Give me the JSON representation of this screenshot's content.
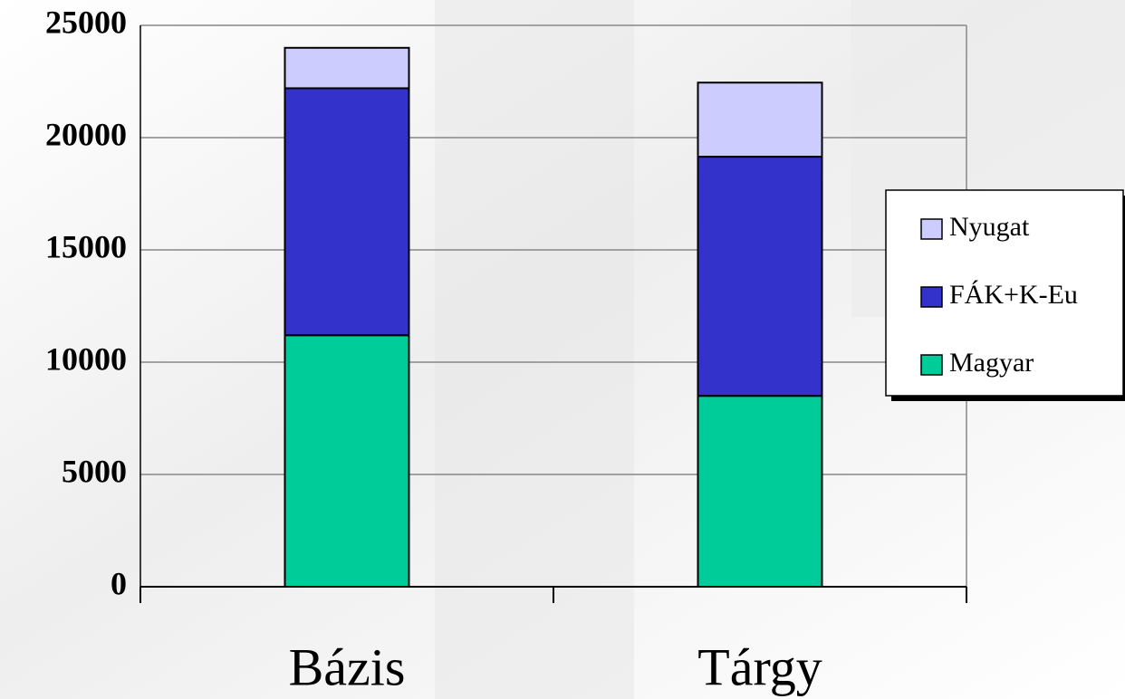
{
  "chart_data": {
    "type": "stacked_bar",
    "categories": [
      "Bázis",
      "Tárgy"
    ],
    "series": [
      {
        "name": "Magyar",
        "color": "#00cc99",
        "values": [
          11200,
          8500
        ]
      },
      {
        "name": "FÁK+K-Eu",
        "color": "#3333cc",
        "values": [
          11000,
          10650
        ]
      },
      {
        "name": "Nyugat",
        "color": "#ccccff",
        "values": [
          1800,
          3300
        ]
      }
    ],
    "ylim": [
      0,
      25000
    ],
    "yticks": [
      0,
      5000,
      10000,
      15000,
      20000,
      25000
    ],
    "grid": true,
    "legend": "right"
  }
}
